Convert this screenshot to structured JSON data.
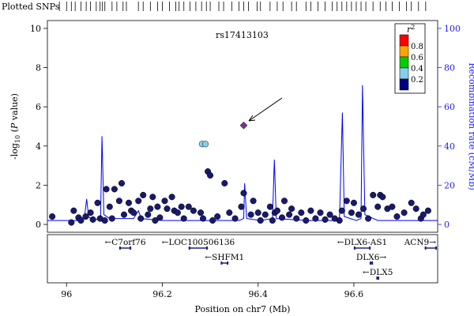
{
  "chart_data": {
    "type": "scatter",
    "snp_track_label": "Plotted SNPs",
    "snp_track_positions": [
      95.962,
      95.97,
      95.985,
      96.0,
      96.01,
      96.018,
      96.03,
      96.041,
      96.05,
      96.062,
      96.07,
      96.075,
      96.08,
      96.095,
      96.105,
      96.118,
      96.125,
      96.15,
      96.16,
      96.175,
      96.19,
      96.2,
      96.215,
      96.228,
      96.235,
      96.245,
      96.258,
      96.27,
      96.282,
      96.292,
      96.3,
      96.318,
      96.328,
      96.345,
      96.36,
      96.37,
      96.38,
      96.398,
      96.405,
      96.425,
      96.44,
      96.452,
      96.47,
      96.48,
      96.5,
      96.51,
      96.525,
      96.54,
      96.555,
      96.565,
      96.575,
      96.585,
      96.595,
      96.605,
      96.615,
      96.625,
      96.64,
      96.655,
      96.667,
      96.68,
      96.695,
      96.71,
      96.72,
      96.735,
      96.75
    ],
    "xlabel": "Position on chr7 (Mb)",
    "ylabel_left": "-log10 (P value)",
    "ylabel_right": "Recombination rate (cM/Mb)",
    "xlim": [
      95.96,
      96.775
    ],
    "ylim_left": [
      -0.4,
      10.4
    ],
    "ylim_right": [
      0,
      100
    ],
    "x_ticks": [
      "96",
      "96.2",
      "96.4",
      "96.6"
    ],
    "y_ticks_left": [
      "0",
      "2",
      "4",
      "6",
      "8",
      "10"
    ],
    "y_ticks_right": [
      "0",
      "20",
      "40",
      "60",
      "80",
      "100"
    ],
    "annotation": "rs17413103",
    "lead_snp": {
      "name": "rs17413103",
      "x": 96.37,
      "y": 5.05,
      "color": "#7b3294",
      "shape": "diamond"
    },
    "legend": {
      "title": "r",
      "title_superscript": "2",
      "thresholds": [
        "0.8",
        "0.6",
        "0.4",
        "0.2"
      ],
      "colors": [
        "#ff0000",
        "#ffa500",
        "#00cc00",
        "#87ceeb",
        "#000080"
      ],
      "placement": "top-right"
    },
    "series": [
      {
        "r2_bin": "0.2-0.4",
        "color": "#87ceeb",
        "points": [
          [
            96.283,
            4.1
          ],
          [
            96.29,
            4.1
          ]
        ]
      },
      {
        "r2_bin": "0-0.2",
        "color": "#191970",
        "points": [
          [
            95.97,
            0.4
          ],
          [
            96.01,
            0.1
          ],
          [
            96.015,
            0.7
          ],
          [
            96.025,
            0.35
          ],
          [
            96.03,
            0.2
          ],
          [
            96.04,
            0.4
          ],
          [
            96.05,
            0.6
          ],
          [
            96.055,
            0.25
          ],
          [
            96.065,
            1.1
          ],
          [
            96.07,
            0.3
          ],
          [
            96.08,
            0.2
          ],
          [
            96.083,
            1.8
          ],
          [
            96.09,
            0.9
          ],
          [
            96.095,
            0.3
          ],
          [
            96.1,
            1.8
          ],
          [
            96.11,
            1.2
          ],
          [
            96.115,
            2.1
          ],
          [
            96.12,
            0.5
          ],
          [
            96.13,
            1.1
          ],
          [
            96.135,
            0.7
          ],
          [
            96.14,
            0.6
          ],
          [
            96.15,
            1.2
          ],
          [
            96.155,
            0.3
          ],
          [
            96.16,
            1.5
          ],
          [
            96.17,
            0.5
          ],
          [
            96.175,
            0.8
          ],
          [
            96.18,
            1.4
          ],
          [
            96.185,
            0.2
          ],
          [
            96.19,
            0.9
          ],
          [
            96.195,
            0.35
          ],
          [
            96.205,
            1.2
          ],
          [
            96.21,
            0.8
          ],
          [
            96.22,
            1.4
          ],
          [
            96.225,
            0.7
          ],
          [
            96.232,
            0.6
          ],
          [
            96.24,
            0.9
          ],
          [
            96.245,
            0.3
          ],
          [
            96.255,
            0.9
          ],
          [
            96.265,
            0.7
          ],
          [
            96.28,
            0.6
          ],
          [
            96.285,
            0.3
          ],
          [
            96.295,
            2.7
          ],
          [
            96.3,
            2.5
          ],
          [
            96.305,
            0.2
          ],
          [
            96.315,
            0.4
          ],
          [
            96.33,
            2.1
          ],
          [
            96.34,
            0.6
          ],
          [
            96.352,
            0.3
          ],
          [
            96.365,
            0.9
          ],
          [
            96.37,
            1.6
          ],
          [
            96.385,
            0.5
          ],
          [
            96.39,
            1.2
          ],
          [
            96.4,
            0.6
          ],
          [
            96.405,
            0.2
          ],
          [
            96.415,
            0.5
          ],
          [
            96.425,
            0.9
          ],
          [
            96.43,
            0.2
          ],
          [
            96.435,
            0.6
          ],
          [
            96.44,
            0.7
          ],
          [
            96.45,
            0.35
          ],
          [
            96.455,
            1.2
          ],
          [
            96.465,
            0.5
          ],
          [
            96.47,
            0.8
          ],
          [
            96.48,
            0.3
          ],
          [
            96.49,
            0.6
          ],
          [
            96.5,
            0.2
          ],
          [
            96.51,
            0.7
          ],
          [
            96.52,
            0.3
          ],
          [
            96.53,
            0.6
          ],
          [
            96.54,
            0.25
          ],
          [
            96.55,
            0.5
          ],
          [
            96.56,
            0.3
          ],
          [
            96.57,
            0.2
          ],
          [
            96.575,
            0.7
          ],
          [
            96.585,
            1.2
          ],
          [
            96.595,
            0.6
          ],
          [
            96.6,
            1.1
          ],
          [
            96.61,
            0.5
          ],
          [
            96.62,
            0.8
          ],
          [
            96.63,
            0.3
          ],
          [
            96.64,
            1.5
          ],
          [
            96.65,
            0.9
          ],
          [
            96.655,
            1.5
          ],
          [
            96.66,
            1.4
          ],
          [
            96.67,
            0.8
          ],
          [
            96.68,
            0.9
          ],
          [
            96.69,
            0.4
          ],
          [
            96.705,
            0.6
          ],
          [
            96.72,
            1.1
          ],
          [
            96.73,
            0.8
          ],
          [
            96.74,
            0.3
          ],
          [
            96.745,
            0.5
          ],
          [
            96.755,
            0.7
          ]
        ]
      }
    ],
    "recombination_line": {
      "color": "#0000ff",
      "points": [
        [
          95.96,
          2
        ],
        [
          95.99,
          2
        ],
        [
          96.03,
          2
        ],
        [
          96.038,
          5
        ],
        [
          96.042,
          13
        ],
        [
          96.046,
          4
        ],
        [
          96.055,
          2
        ],
        [
          96.071,
          3
        ],
        [
          96.074,
          45
        ],
        [
          96.078,
          5
        ],
        [
          96.09,
          3
        ],
        [
          96.14,
          3
        ],
        [
          96.15,
          7
        ],
        [
          96.156,
          3
        ],
        [
          96.2,
          2
        ],
        [
          96.25,
          2
        ],
        [
          96.3,
          2
        ],
        [
          96.36,
          2
        ],
        [
          96.37,
          3
        ],
        [
          96.372,
          21
        ],
        [
          96.376,
          3
        ],
        [
          96.405,
          2
        ],
        [
          96.43,
          3
        ],
        [
          96.434,
          33
        ],
        [
          96.438,
          3
        ],
        [
          96.5,
          2
        ],
        [
          96.57,
          2
        ],
        [
          96.576,
          57
        ],
        [
          96.58,
          4
        ],
        [
          96.605,
          2
        ],
        [
          96.615,
          3
        ],
        [
          96.618,
          71
        ],
        [
          96.623,
          5
        ],
        [
          96.65,
          2
        ],
        [
          96.7,
          2
        ],
        [
          96.775,
          2
        ]
      ]
    },
    "genes": [
      {
        "name": "C7orf76",
        "label": "←C7orf76",
        "start": 96.11,
        "end": 96.135,
        "row": 1
      },
      {
        "name": "LOC100506136",
        "label": "←LOC100506136",
        "start": 96.255,
        "end": 96.295,
        "row": 1
      },
      {
        "name": "SHFM1",
        "label": "←SHFM1",
        "start": 96.322,
        "end": 96.338,
        "row": 2
      },
      {
        "name": "DLX6-AS1",
        "label": "←DLX6-AS1",
        "start": 96.6,
        "end": 96.635,
        "row": 1
      },
      {
        "name": "ACN9",
        "label": "ACN9→",
        "start": 96.748,
        "end": 96.775,
        "row": 1
      },
      {
        "name": "DLX6",
        "label": "DLX6→",
        "start": 96.633,
        "end": 96.64,
        "row": 2
      },
      {
        "name": "DLX5",
        "label": "←DLX5",
        "start": 96.647,
        "end": 96.653,
        "row": 3
      }
    ]
  }
}
